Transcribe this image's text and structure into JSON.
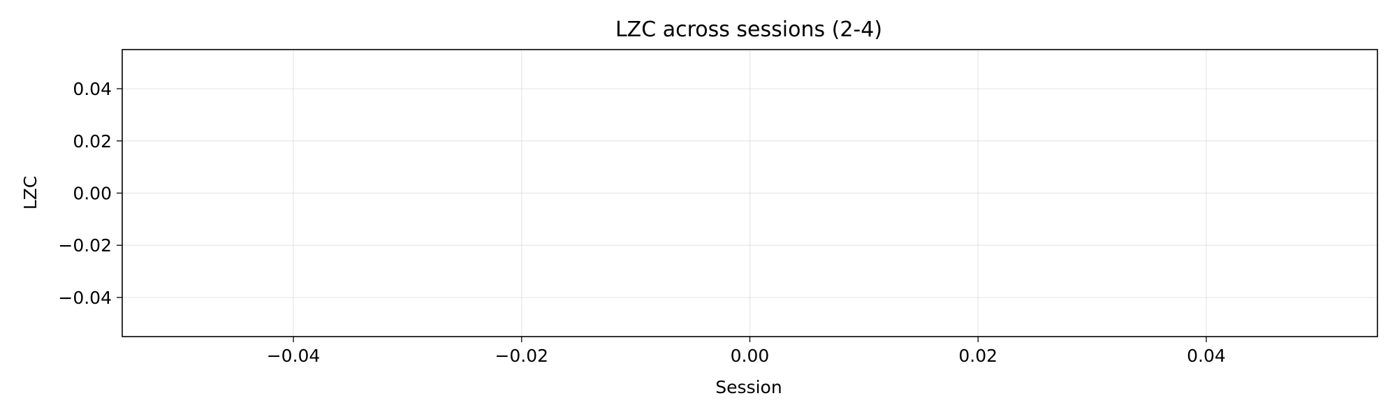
{
  "chart_data": {
    "type": "line",
    "title": "LZC across sessions (2-4)",
    "xlabel": "Session",
    "ylabel": "LZC",
    "xlim": [
      -0.055,
      0.055
    ],
    "ylim": [
      -0.055,
      0.055
    ],
    "x_ticks": [
      -0.04,
      -0.02,
      0.0,
      0.02,
      0.04
    ],
    "x_tick_labels": [
      "−0.04",
      "−0.02",
      "0.00",
      "0.02",
      "0.04"
    ],
    "y_ticks": [
      -0.04,
      -0.02,
      0.0,
      0.02,
      0.04
    ],
    "y_tick_labels": [
      "−0.04",
      "−0.02",
      "0.00",
      "0.02",
      "0.04"
    ],
    "grid": true,
    "series": [],
    "colors": {
      "grid": "#b0b0b0",
      "axes": "#000000",
      "background": "#ffffff"
    }
  }
}
